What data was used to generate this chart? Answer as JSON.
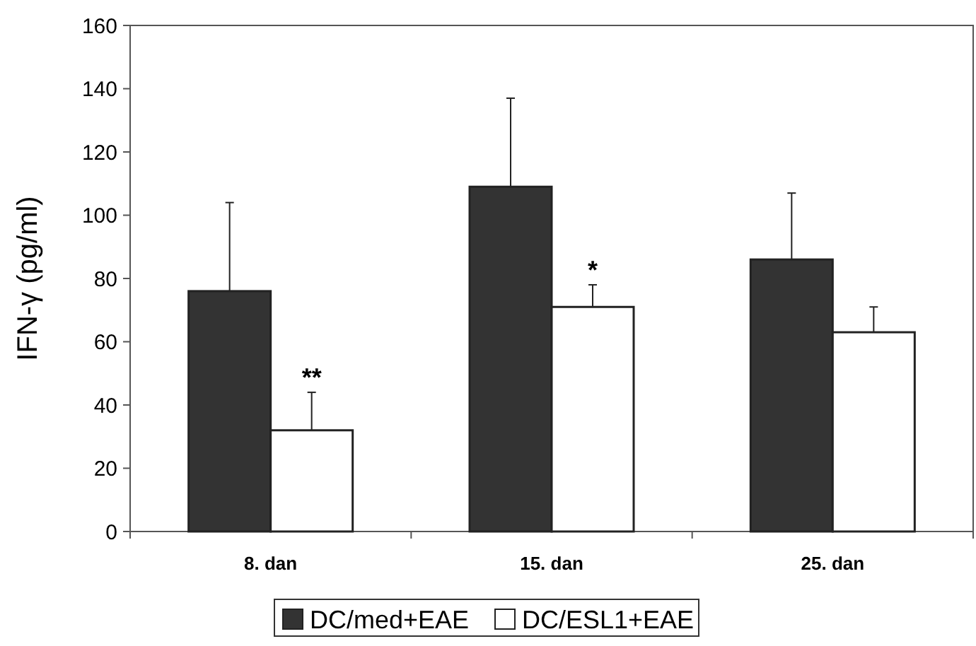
{
  "chart_data": {
    "type": "bar",
    "ylabel": "IFN-γ (pg/ml)",
    "categories": [
      "8. dan",
      "15. dan",
      "25. dan"
    ],
    "series": [
      {
        "name": "DC/med+EAE",
        "color": "#333333",
        "values": [
          76,
          109,
          86
        ],
        "errors": [
          [
            76,
            104
          ],
          [
            109,
            137
          ],
          [
            86,
            107
          ]
        ]
      },
      {
        "name": "DC/ESL1+EAE",
        "color": "#ffffff",
        "values": [
          32,
          71,
          63
        ],
        "errors": [
          [
            32,
            44
          ],
          [
            71,
            78
          ],
          [
            63,
            71
          ]
        ]
      }
    ],
    "annotations": [
      {
        "text": "**",
        "x": "8. dan",
        "y": 46
      },
      {
        "text": "*",
        "x": "15. dan",
        "y": 80
      }
    ],
    "ylim": [
      0,
      160
    ],
    "yticks": [
      0,
      20,
      40,
      60,
      80,
      100,
      120,
      140,
      160
    ],
    "grid": false,
    "legend": "bottom"
  }
}
